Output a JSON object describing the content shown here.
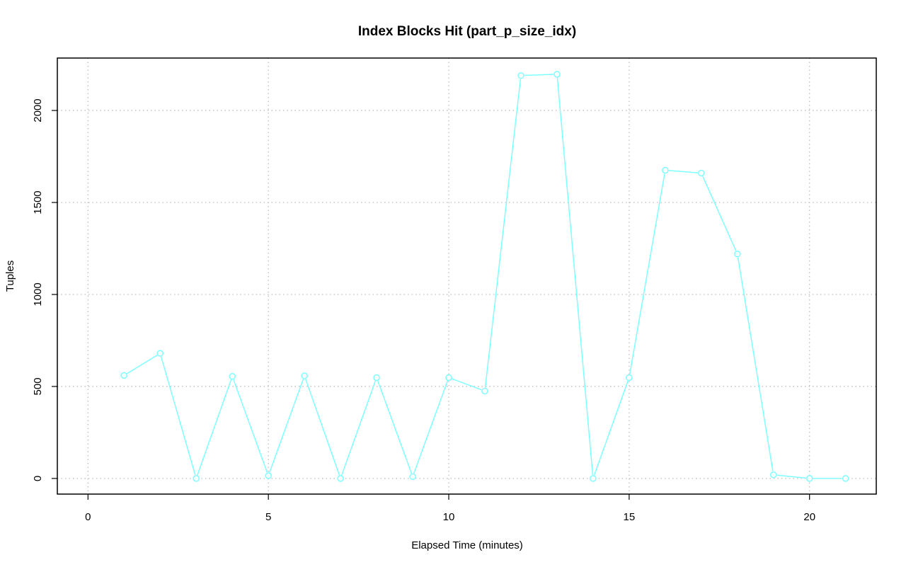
{
  "chart_data": {
    "type": "line",
    "title": "Index Blocks Hit (part_p_size_idx)",
    "xlabel": "Elapsed Time (minutes)",
    "ylabel": "Tuples",
    "xlim": [
      -0.85,
      21.85
    ],
    "ylim": [
      -85,
      2285
    ],
    "xticks": [
      0,
      5,
      10,
      15,
      20
    ],
    "yticks": [
      0,
      500,
      1000,
      1500,
      2000
    ],
    "grid": true,
    "color": "#7FFFFF",
    "series": [
      {
        "x": [
          1,
          2,
          3,
          4,
          5,
          6,
          7,
          8,
          9,
          10,
          11,
          12,
          13,
          14,
          15,
          16,
          17,
          18,
          19,
          20,
          21
        ],
        "values": [
          560,
          680,
          0,
          555,
          15,
          558,
          0,
          548,
          10,
          548,
          475,
          2190,
          2197,
          0,
          548,
          1675,
          1660,
          1220,
          20,
          0,
          0
        ]
      }
    ]
  }
}
